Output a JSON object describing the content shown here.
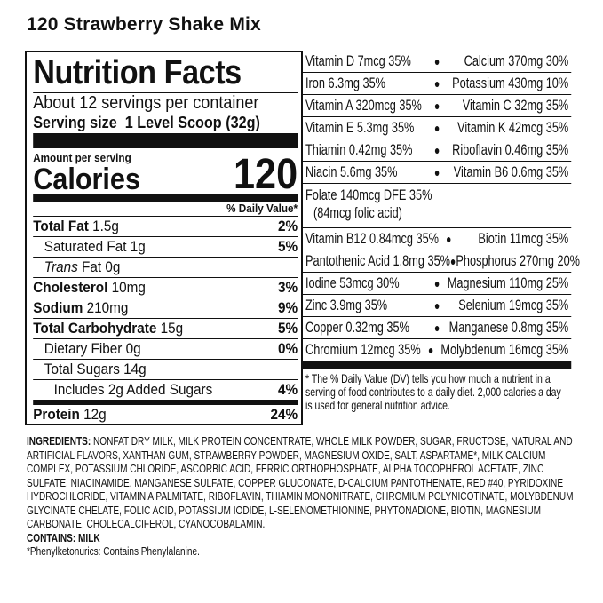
{
  "product_title": "120 Strawberry Shake Mix",
  "facts": {
    "heading": "Nutrition Facts",
    "servings": "About 12 servings per container",
    "serving_size_label": "Serving size",
    "serving_size": "1 Level Scoop (32g)",
    "amount_per_serving": "Amount per serving",
    "calories_label": "Calories",
    "calories": "120",
    "dv_header": "% Daily Value*",
    "rows": [
      {
        "label": "Total Fat",
        "amount": "1.5g",
        "dv": "2%",
        "bold": true,
        "indent": 0
      },
      {
        "label": "Saturated Fat",
        "amount": "1g",
        "dv": "5%",
        "bold": false,
        "indent": 1
      },
      {
        "label": "Trans",
        "amount": "Fat 0g",
        "dv": "",
        "bold": false,
        "indent": 1
      },
      {
        "label": "Cholesterol",
        "amount": "10mg",
        "dv": "3%",
        "bold": true,
        "indent": 0
      },
      {
        "label": "Sodium",
        "amount": "210mg",
        "dv": "9%",
        "bold": true,
        "indent": 0
      },
      {
        "label": "Total Carbohydrate",
        "amount": "15g",
        "dv": "5%",
        "bold": true,
        "indent": 0
      },
      {
        "label": "Dietary Fiber",
        "amount": "0g",
        "dv": "0%",
        "bold": false,
        "indent": 1
      },
      {
        "label": "Total Sugars",
        "amount": "14g",
        "dv": "",
        "bold": false,
        "indent": 1
      },
      {
        "label": "Includes 2g Added Sugars",
        "amount": "",
        "dv": "4%",
        "bold": false,
        "indent": 2
      }
    ],
    "protein": {
      "label": "Protein",
      "amount": "12g",
      "dv": "24%"
    }
  },
  "vitamins": {
    "rows": [
      [
        "Vitamin D 7mcg 35%",
        "Calcium 370mg 30%"
      ],
      [
        "Iron 6.3mg 35%",
        "Potassium 430mg 10%"
      ],
      [
        "Vitamin A 320mcg 35%",
        "Vitamin C 32mg 35%"
      ],
      [
        "Vitamin E 5.3mg 35%",
        "Vitamin K 42mcg 35%"
      ],
      [
        "Thiamin 0.42mg 35%",
        "Riboflavin 0.46mg 35%"
      ],
      [
        "Niacin 5.6mg 35%",
        "Vitamin B6 0.6mg 35%"
      ]
    ],
    "folate": [
      "Folate 140mcg DFE 35%",
      "(84mcg folic acid)"
    ],
    "rows2": [
      [
        "Vitamin B12 0.84mcg 35%",
        "Biotin 11mcg 35%"
      ],
      [
        "Pantothenic Acid 1.8mg 35%",
        "Phosphorus 270mg 20%"
      ],
      [
        "Iodine 53mcg 30%",
        "Magnesium 110mg 25%"
      ],
      [
        "Zinc 3.9mg 35%",
        "Selenium 19mcg 35%"
      ],
      [
        "Copper 0.32mg 35%",
        "Manganese 0.8mg 35%"
      ],
      [
        "Chromium 12mcg 35%",
        "Molybdenum 16mcg 35%"
      ]
    ],
    "footnote": "* The % Daily Value (DV) tells you how much a nutrient in a serving of food contributes to a daily diet. 2,000 calories a day is used for general nutrition advice."
  },
  "ingredients": {
    "label": "INGREDIENTS:",
    "text": " NONFAT DRY MILK, MILK PROTEIN CONCENTRATE, WHOLE MILK POWDER, SUGAR, FRUCTOSE, NATURAL AND ARTIFICIAL FLAVORS, XANTHAN GUM, STRAWBERRY POWDER, MAGNESIUM OXIDE, SALT, ASPARTAME*, MILK CALCIUM COMPLEX, POTASSIUM CHLORIDE, ASCORBIC ACID, FERRIC ORTHOPHOSPHATE, ALPHA TOCOPHEROL ACETATE, ZINC SULFATE, NIACINAMIDE, MANGANESE SULFATE, COPPER GLUCONATE, D-CALCIUM PANTOTHENATE, RED #40, PYRIDOXINE HYDROCHLORIDE, VITAMIN A PALMITATE, RIBOFLAVIN, THIAMIN MONONITRATE, CHROMIUM POLYNICOTINATE, MOLYBDENUM GLYCINATE CHELATE, FOLIC ACID, POTASSIUM IODIDE, L-SELENOMETHIONINE, PHYTONADIONE, BIOTIN, MAGNESIUM CARBONATE, CHOLECALCIFEROL, CYANOCOBALAMIN.",
    "contains": "CONTAINS: MILK",
    "note": "*Phenylketonurics: Contains Phenylalanine."
  }
}
